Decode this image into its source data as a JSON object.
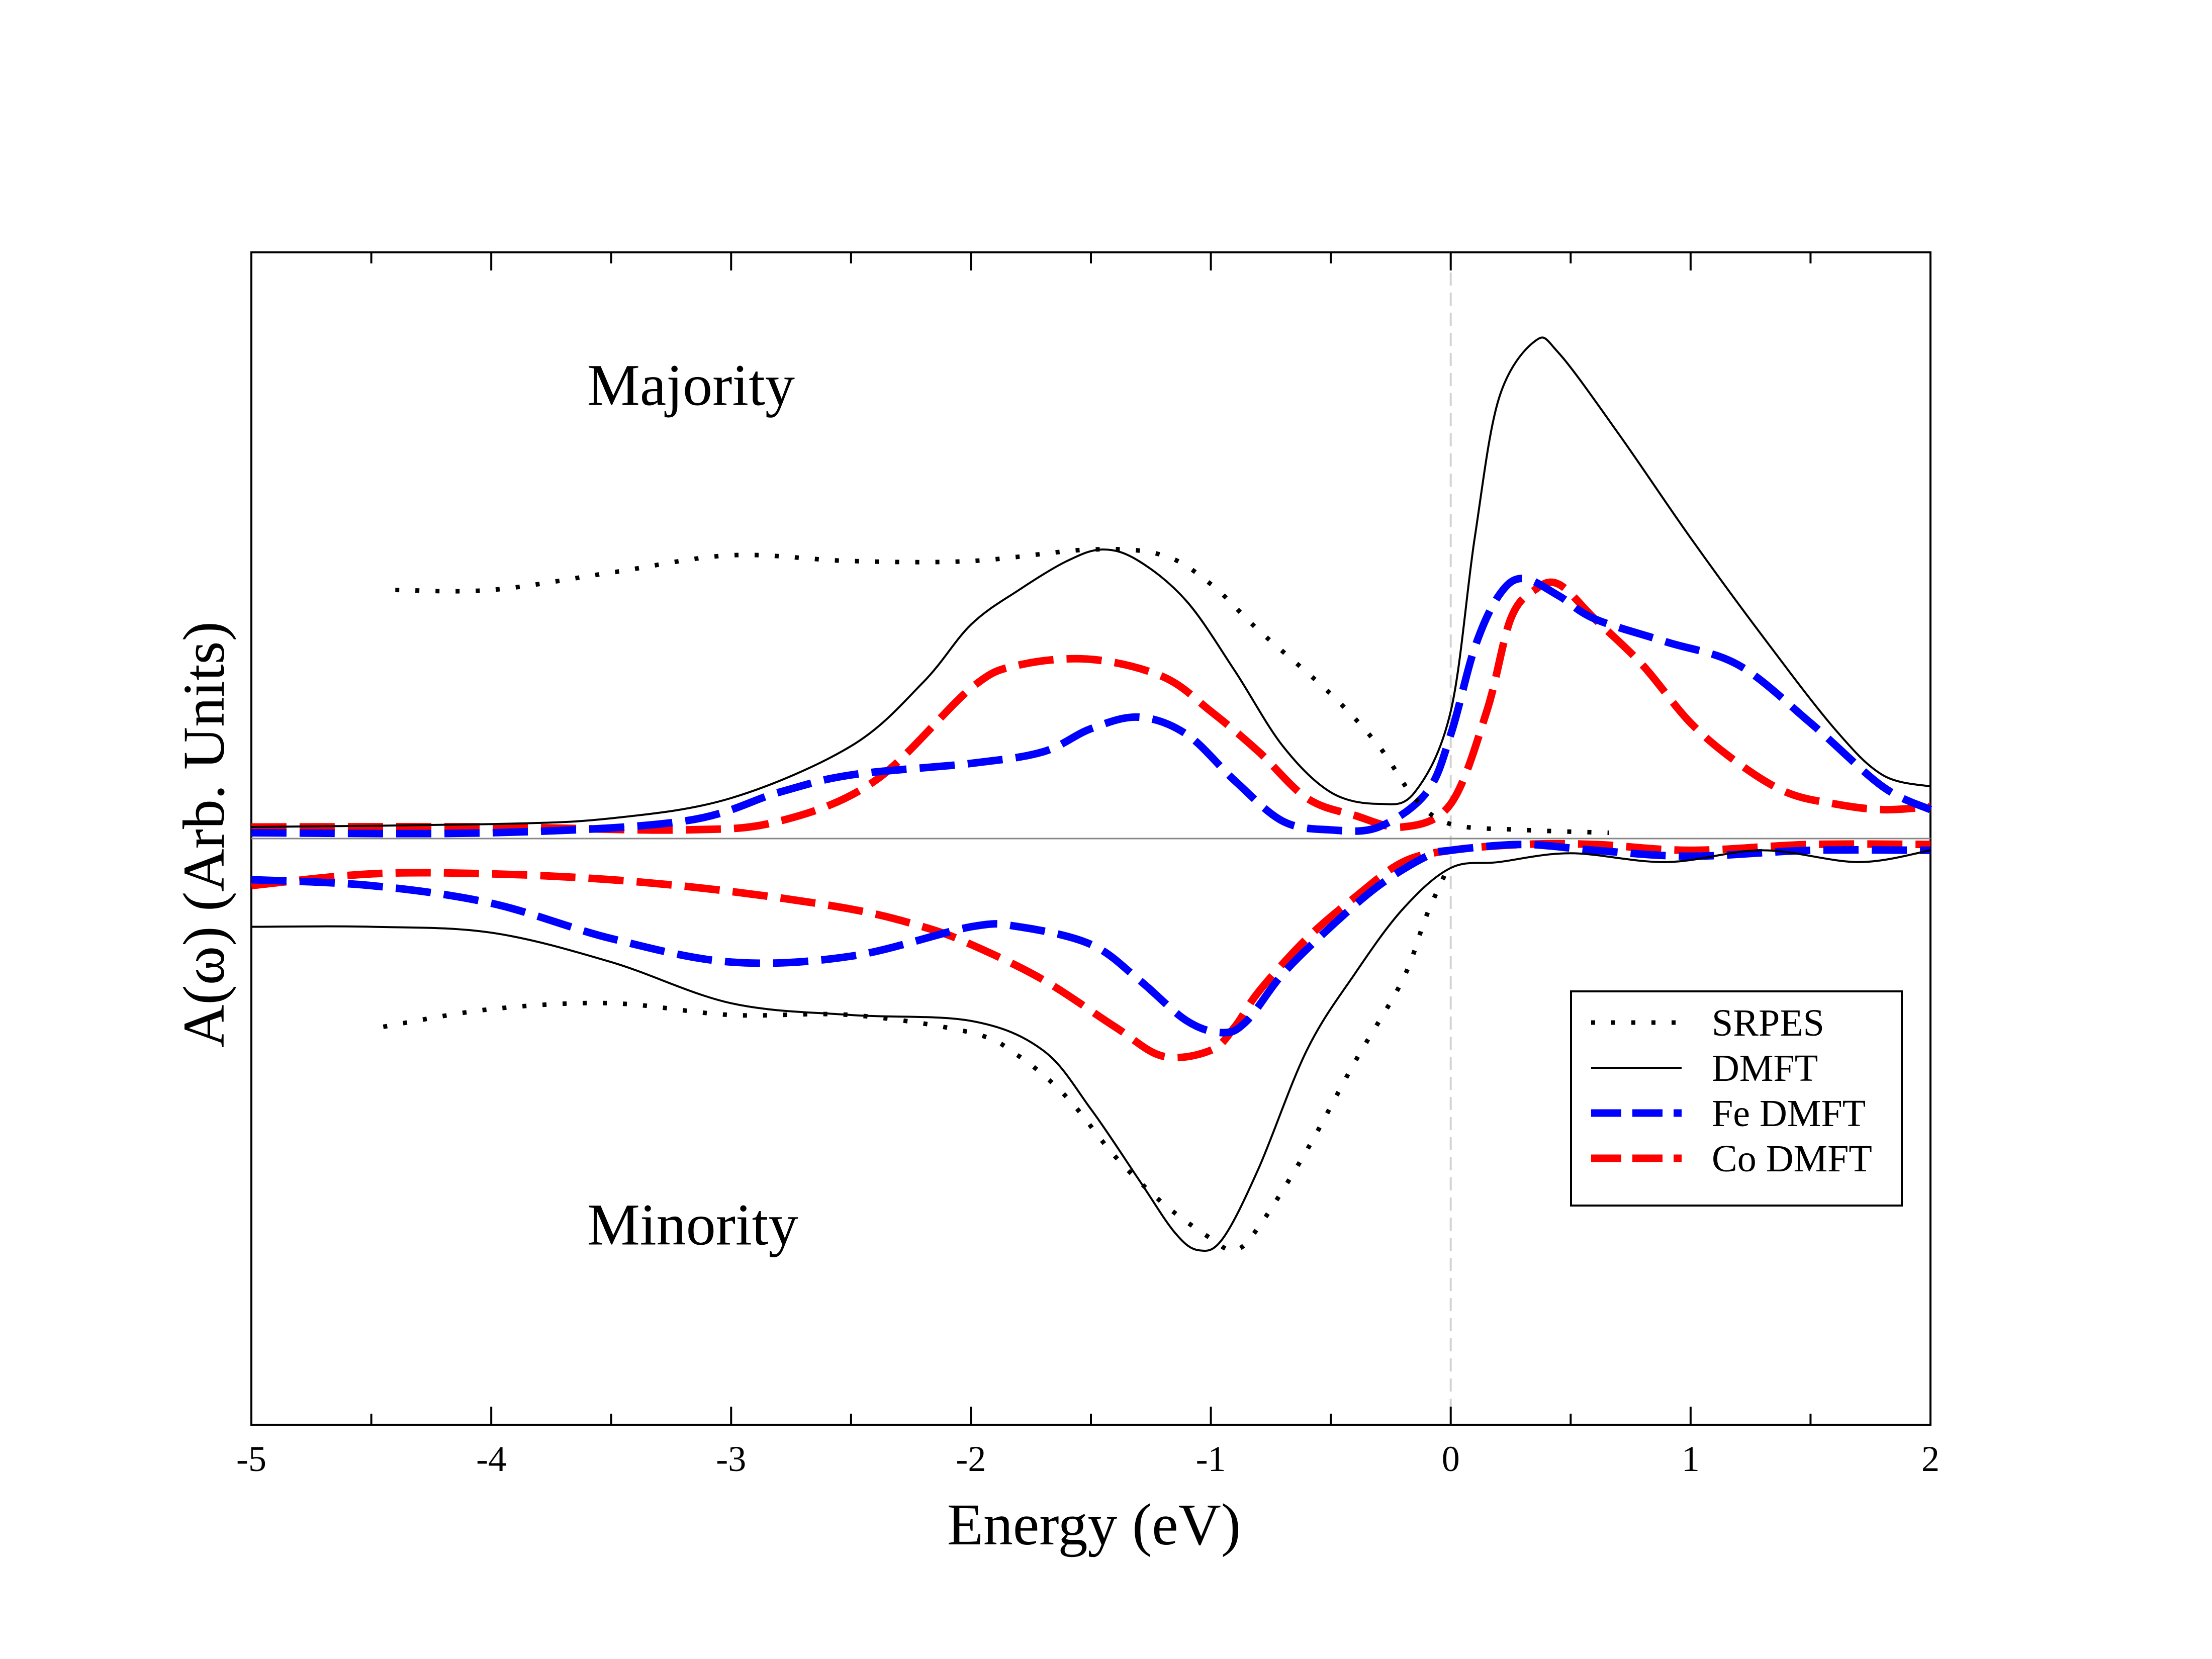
{
  "chart_data": {
    "type": "line",
    "title": "",
    "xlabel": "Energy (eV)",
    "ylabel": "A(ω) (Arb. Units)",
    "xlim": [
      -5,
      2
    ],
    "ylim": [
      -1,
      1
    ],
    "grid": false,
    "x_ticks": [
      -5,
      -4,
      -3,
      -2,
      -1,
      0,
      1,
      2
    ],
    "x_tick_labels": [
      "-5",
      "-4",
      "-3",
      "-2",
      "-1",
      "0",
      "1",
      "2"
    ],
    "fermi_level": 0,
    "baseline": 0,
    "annotations": [
      {
        "text": "Majority",
        "x": -3.6,
        "y": 0.75
      },
      {
        "text": "Minority",
        "x": -3.6,
        "y": -0.69
      }
    ],
    "legend": {
      "position": "lower-right",
      "entries": [
        "SRPES",
        "DMFT",
        "Fe DMFT",
        "Co DMFT"
      ]
    },
    "series": [
      {
        "name": "SRPES",
        "style": "dotted",
        "color": "#000000",
        "channel": "majority",
        "points": [
          [
            -4.4,
            0.43
          ],
          [
            -4.0,
            0.43
          ],
          [
            -3.5,
            0.46
          ],
          [
            -3.0,
            0.49
          ],
          [
            -2.5,
            0.48
          ],
          [
            -2.0,
            0.48
          ],
          [
            -1.5,
            0.5
          ],
          [
            -1.2,
            0.49
          ],
          [
            -1.0,
            0.44
          ],
          [
            -0.8,
            0.36
          ],
          [
            -0.5,
            0.25
          ],
          [
            -0.3,
            0.16
          ],
          [
            -0.15,
            0.07
          ],
          [
            0.0,
            0.025
          ],
          [
            0.3,
            0.015
          ],
          [
            0.66,
            0.01
          ]
        ]
      },
      {
        "name": "DMFT",
        "style": "solid",
        "color": "#000000",
        "channel": "majority",
        "points": [
          [
            -5.0,
            0.02
          ],
          [
            -4.0,
            0.025
          ],
          [
            -3.5,
            0.035
          ],
          [
            -3.0,
            0.07
          ],
          [
            -2.5,
            0.16
          ],
          [
            -2.2,
            0.27
          ],
          [
            -2.0,
            0.37
          ],
          [
            -1.8,
            0.43
          ],
          [
            -1.6,
            0.48
          ],
          [
            -1.45,
            0.5
          ],
          [
            -1.3,
            0.48
          ],
          [
            -1.1,
            0.41
          ],
          [
            -0.9,
            0.29
          ],
          [
            -0.7,
            0.16
          ],
          [
            -0.5,
            0.08
          ],
          [
            -0.3,
            0.06
          ],
          [
            -0.15,
            0.08
          ],
          [
            0.0,
            0.22
          ],
          [
            0.1,
            0.52
          ],
          [
            0.2,
            0.76
          ],
          [
            0.35,
            0.86
          ],
          [
            0.45,
            0.84
          ],
          [
            0.7,
            0.7
          ],
          [
            1.0,
            0.52
          ],
          [
            1.3,
            0.35
          ],
          [
            1.6,
            0.19
          ],
          [
            1.8,
            0.11
          ],
          [
            2.0,
            0.09
          ]
        ]
      },
      {
        "name": "Fe DMFT",
        "style": "dashed",
        "color": "#0000ff",
        "channel": "majority",
        "points": [
          [
            -5.0,
            0.01
          ],
          [
            -4.0,
            0.01
          ],
          [
            -3.2,
            0.03
          ],
          [
            -2.8,
            0.08
          ],
          [
            -2.5,
            0.11
          ],
          [
            -2.0,
            0.13
          ],
          [
            -1.7,
            0.15
          ],
          [
            -1.5,
            0.19
          ],
          [
            -1.3,
            0.21
          ],
          [
            -1.1,
            0.18
          ],
          [
            -0.9,
            0.1
          ],
          [
            -0.7,
            0.03
          ],
          [
            -0.5,
            0.015
          ],
          [
            -0.3,
            0.02
          ],
          [
            -0.1,
            0.08
          ],
          [
            0.0,
            0.18
          ],
          [
            0.1,
            0.33
          ],
          [
            0.2,
            0.42
          ],
          [
            0.3,
            0.45
          ],
          [
            0.45,
            0.42
          ],
          [
            0.6,
            0.38
          ],
          [
            0.9,
            0.34
          ],
          [
            1.2,
            0.3
          ],
          [
            1.5,
            0.2
          ],
          [
            1.8,
            0.09
          ],
          [
            2.0,
            0.05
          ]
        ]
      },
      {
        "name": "Co DMFT",
        "style": "dashed",
        "color": "#ff0000",
        "channel": "majority",
        "points": [
          [
            -5.0,
            0.02
          ],
          [
            -4.0,
            0.02
          ],
          [
            -3.2,
            0.015
          ],
          [
            -2.8,
            0.03
          ],
          [
            -2.4,
            0.1
          ],
          [
            -2.0,
            0.26
          ],
          [
            -1.8,
            0.3
          ],
          [
            -1.5,
            0.31
          ],
          [
            -1.2,
            0.28
          ],
          [
            -1.0,
            0.22
          ],
          [
            -0.8,
            0.15
          ],
          [
            -0.6,
            0.07
          ],
          [
            -0.4,
            0.04
          ],
          [
            -0.2,
            0.02
          ],
          [
            0.0,
            0.06
          ],
          [
            0.15,
            0.22
          ],
          [
            0.25,
            0.38
          ],
          [
            0.35,
            0.43
          ],
          [
            0.45,
            0.44
          ],
          [
            0.6,
            0.38
          ],
          [
            0.8,
            0.3
          ],
          [
            1.0,
            0.2
          ],
          [
            1.2,
            0.13
          ],
          [
            1.4,
            0.08
          ],
          [
            1.6,
            0.06
          ],
          [
            1.8,
            0.05
          ],
          [
            2.0,
            0.055
          ]
        ]
      },
      {
        "name": "SRPES",
        "style": "dotted",
        "color": "#000000",
        "channel": "minority",
        "points": [
          [
            -4.45,
            -0.32
          ],
          [
            -4.0,
            -0.29
          ],
          [
            -3.5,
            -0.28
          ],
          [
            -3.0,
            -0.3
          ],
          [
            -2.5,
            -0.3
          ],
          [
            -2.0,
            -0.33
          ],
          [
            -1.8,
            -0.37
          ],
          [
            -1.6,
            -0.44
          ],
          [
            -1.4,
            -0.54
          ],
          [
            -1.2,
            -0.62
          ],
          [
            -1.0,
            -0.68
          ],
          [
            -0.9,
            -0.7
          ],
          [
            -0.8,
            -0.66
          ],
          [
            -0.6,
            -0.53
          ],
          [
            -0.4,
            -0.38
          ],
          [
            -0.2,
            -0.24
          ],
          [
            -0.1,
            -0.13
          ],
          [
            0.0,
            -0.04
          ]
        ]
      },
      {
        "name": "DMFT",
        "style": "solid",
        "color": "#000000",
        "channel": "minority",
        "points": [
          [
            -5.0,
            -0.15
          ],
          [
            -4.5,
            -0.15
          ],
          [
            -4.0,
            -0.16
          ],
          [
            -3.5,
            -0.21
          ],
          [
            -3.0,
            -0.28
          ],
          [
            -2.5,
            -0.3
          ],
          [
            -2.0,
            -0.31
          ],
          [
            -1.7,
            -0.36
          ],
          [
            -1.5,
            -0.46
          ],
          [
            -1.3,
            -0.58
          ],
          [
            -1.15,
            -0.67
          ],
          [
            -1.05,
            -0.7
          ],
          [
            -0.95,
            -0.68
          ],
          [
            -0.8,
            -0.56
          ],
          [
            -0.6,
            -0.36
          ],
          [
            -0.4,
            -0.23
          ],
          [
            -0.2,
            -0.12
          ],
          [
            0.0,
            -0.05
          ],
          [
            0.2,
            -0.04
          ],
          [
            0.5,
            -0.025
          ],
          [
            0.9,
            -0.04
          ],
          [
            1.3,
            -0.02
          ],
          [
            1.7,
            -0.04
          ],
          [
            2.0,
            -0.02
          ]
        ]
      },
      {
        "name": "Fe DMFT",
        "style": "dashed",
        "color": "#0000ff",
        "channel": "minority",
        "points": [
          [
            -5.0,
            -0.07
          ],
          [
            -4.5,
            -0.08
          ],
          [
            -4.0,
            -0.11
          ],
          [
            -3.5,
            -0.17
          ],
          [
            -3.0,
            -0.21
          ],
          [
            -2.5,
            -0.2
          ],
          [
            -2.0,
            -0.15
          ],
          [
            -1.8,
            -0.15
          ],
          [
            -1.5,
            -0.18
          ],
          [
            -1.3,
            -0.24
          ],
          [
            -1.1,
            -0.31
          ],
          [
            -0.95,
            -0.33
          ],
          [
            -0.85,
            -0.31
          ],
          [
            -0.7,
            -0.23
          ],
          [
            -0.5,
            -0.15
          ],
          [
            -0.3,
            -0.08
          ],
          [
            -0.1,
            -0.03
          ],
          [
            0.0,
            -0.02
          ],
          [
            0.3,
            -0.01
          ],
          [
            0.6,
            -0.02
          ],
          [
            1.0,
            -0.03
          ],
          [
            1.5,
            -0.02
          ],
          [
            2.0,
            -0.02
          ]
        ]
      },
      {
        "name": "Co DMFT",
        "style": "dashed",
        "color": "#ff0000",
        "channel": "minority",
        "points": [
          [
            -5.0,
            -0.08
          ],
          [
            -4.5,
            -0.06
          ],
          [
            -4.0,
            -0.06
          ],
          [
            -3.5,
            -0.07
          ],
          [
            -3.0,
            -0.09
          ],
          [
            -2.5,
            -0.12
          ],
          [
            -2.2,
            -0.15
          ],
          [
            -2.0,
            -0.18
          ],
          [
            -1.7,
            -0.24
          ],
          [
            -1.4,
            -0.32
          ],
          [
            -1.2,
            -0.37
          ],
          [
            -1.0,
            -0.36
          ],
          [
            -0.9,
            -0.32
          ],
          [
            -0.8,
            -0.26
          ],
          [
            -0.6,
            -0.17
          ],
          [
            -0.4,
            -0.1
          ],
          [
            -0.2,
            -0.04
          ],
          [
            0.0,
            -0.02
          ],
          [
            0.3,
            -0.01
          ],
          [
            0.6,
            -0.01
          ],
          [
            1.0,
            -0.02
          ],
          [
            1.5,
            -0.01
          ],
          [
            2.0,
            -0.01
          ]
        ]
      }
    ]
  }
}
